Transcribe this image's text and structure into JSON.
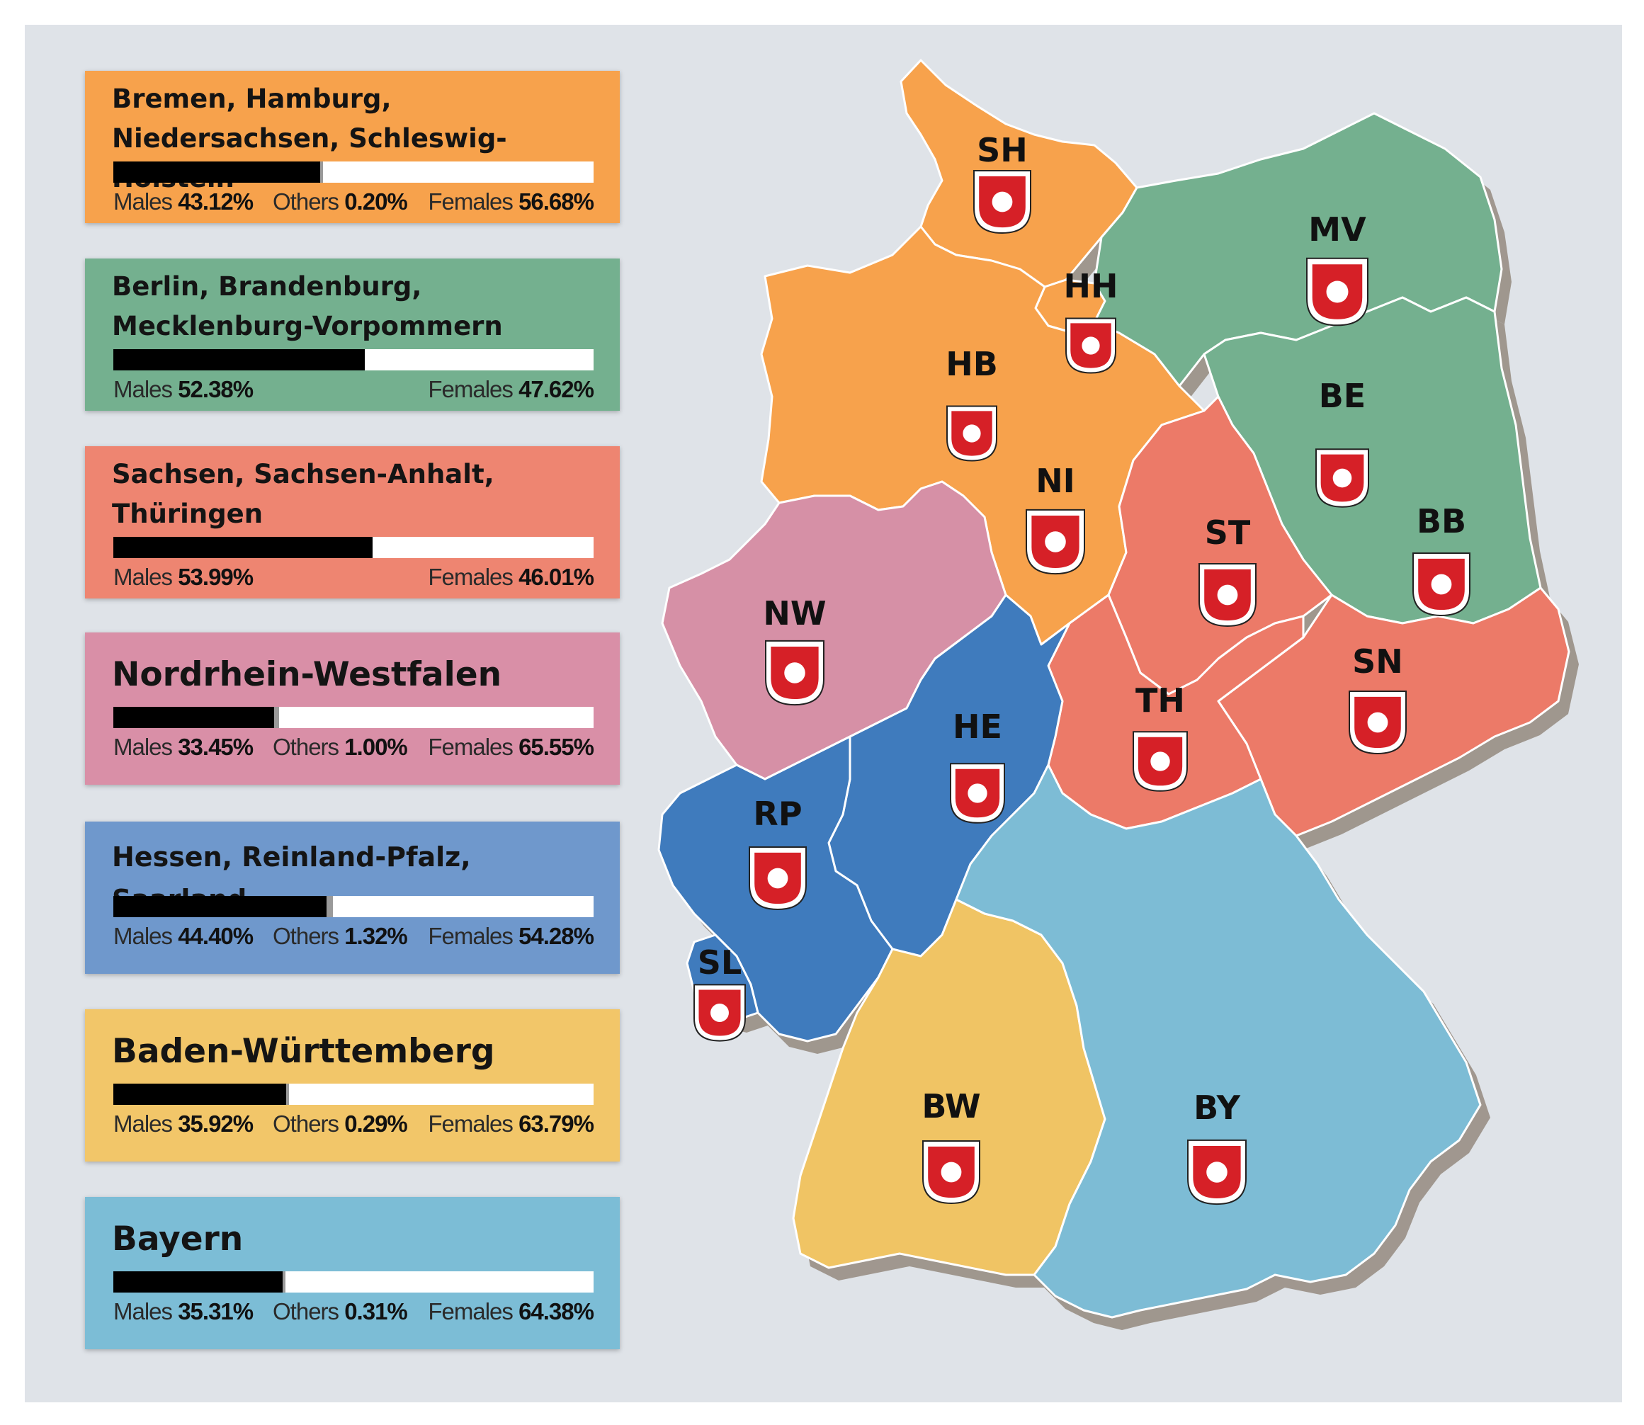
{
  "regions": [
    {
      "title": "Bremen, Hamburg, Niedersachsen, Schleswig-Holstein",
      "color": "#f7a24c",
      "layout": "two",
      "males_label": "Males",
      "males": "43.12%",
      "others_label": "Others",
      "others": "0.20%",
      "females_label": "Females",
      "females": "56.68%",
      "males_frac": 0.4312,
      "others_frac": 0.002
    },
    {
      "title": "Berlin, Brandenburg, Mecklenburg-Vorpommern",
      "color": "#74b08f",
      "layout": "two",
      "males_label": "Males",
      "males": "52.38%",
      "females_label": "Females",
      "females": "47.62%",
      "males_frac": 0.5238,
      "others_frac": 0
    },
    {
      "title": "Sachsen, Sachsen-Anhalt, Thüringen",
      "color": "#ee8571",
      "layout": "two",
      "males_label": "Males",
      "males": "53.99%",
      "females_label": "Females",
      "females": "46.01%",
      "males_frac": 0.5399,
      "others_frac": 0
    },
    {
      "title": "Nordrhein-Westfalen",
      "color": "#d98fa7",
      "layout": "one",
      "males_label": "Males",
      "males": "33.45%",
      "others_label": "Others",
      "others": "1.00%",
      "females_label": "Females",
      "females": "65.55%",
      "males_frac": 0.3345,
      "others_frac": 0.01
    },
    {
      "title": "Hessen, Reinland-Pfalz, Saarland",
      "color": "#6f98cc",
      "layout": "one-small",
      "males_label": "Males",
      "males": "44.40%",
      "others_label": "Others",
      "others": "1.32%",
      "females_label": "Females",
      "females": "54.28%",
      "males_frac": 0.444,
      "others_frac": 0.0132
    },
    {
      "title": "Baden-Württemberg",
      "color": "#f2c669",
      "layout": "one",
      "males_label": "Males",
      "males": "35.92%",
      "others_label": "Others",
      "others": "0.29%",
      "females_label": "Females",
      "females": "63.79%",
      "males_frac": 0.3592,
      "others_frac": 0.0029
    },
    {
      "title": "Bayern",
      "color": "#7cbdd6",
      "layout": "one",
      "males_label": "Males",
      "males": "35.31%",
      "others_label": "Others",
      "others": "0.31%",
      "females_label": "Females",
      "females": "64.38%",
      "males_frac": 0.3531,
      "others_frac": 0.0031
    }
  ],
  "states": [
    {
      "abbr": "SH",
      "color": "#f7a24c"
    },
    {
      "abbr": "HH",
      "color": "#f7a24c"
    },
    {
      "abbr": "HB",
      "color": "#f7a24c"
    },
    {
      "abbr": "NI",
      "color": "#f7a24c"
    },
    {
      "abbr": "MV",
      "color": "#74b08f"
    },
    {
      "abbr": "BE",
      "color": "#74b08f"
    },
    {
      "abbr": "BB",
      "color": "#74b08f"
    },
    {
      "abbr": "ST",
      "color": "#ec7a68"
    },
    {
      "abbr": "SN",
      "color": "#ec7a68"
    },
    {
      "abbr": "TH",
      "color": "#ec7a68"
    },
    {
      "abbr": "NW",
      "color": "#d690a6"
    },
    {
      "abbr": "HE",
      "color": "#3f7bbd"
    },
    {
      "abbr": "RP",
      "color": "#3f7bbd"
    },
    {
      "abbr": "SL",
      "color": "#3f7bbd"
    },
    {
      "abbr": "BW",
      "color": "#f0c464"
    },
    {
      "abbr": "BY",
      "color": "#7dbcd5"
    }
  ]
}
